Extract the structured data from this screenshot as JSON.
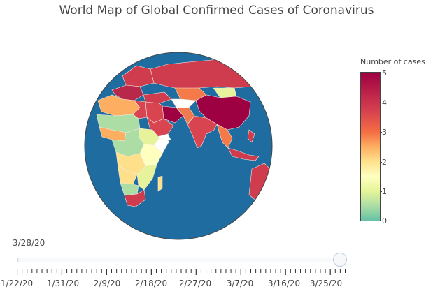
{
  "title": "World Map of Global Confirmed Cases of Coronavirus",
  "colorbar": {
    "title": "Number of cases",
    "ticks": [
      "0",
      "1",
      "2",
      "3",
      "4",
      "5"
    ],
    "colorscale": [
      "#66c2a5",
      "#abdda4",
      "#e6f598",
      "#ffffbf",
      "#fee08b",
      "#fdae61",
      "#f46d43",
      "#d53e4f",
      "#9e0142"
    ]
  },
  "map": {
    "projection": "orthographic",
    "ocean_color": "#1f6da0",
    "border_color": "#f5e9e0"
  },
  "slider": {
    "current_value": "3/28/20",
    "labels": [
      "1/22/20",
      "1/31/20",
      "2/9/20",
      "2/18/20",
      "2/27/20",
      "3/7/20",
      "3/16/20",
      "3/25/20"
    ],
    "total_steps": 67,
    "current_step": 66
  }
}
